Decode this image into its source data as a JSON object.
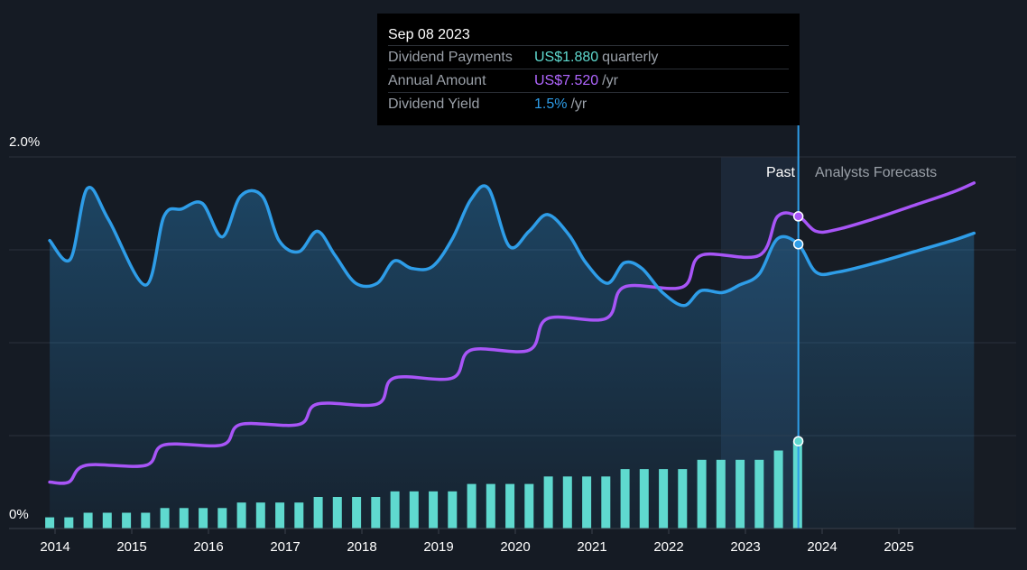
{
  "colors": {
    "background": "#151b24",
    "payments": "#5fd9cf",
    "annual": "#a855f7",
    "yield": "#2e9de8",
    "text": "#ffffff",
    "muted": "#9aa0a8"
  },
  "tooltip": {
    "date": "Sep 08 2023",
    "rows": [
      {
        "label": "Dividend Payments",
        "value": "US$1.880",
        "unit": "quarterly"
      },
      {
        "label": "Annual Amount",
        "value": "US$7.520",
        "unit": "/yr"
      },
      {
        "label": "Dividend Yield",
        "value": "1.5%",
        "unit": "/yr"
      }
    ]
  },
  "labels": {
    "past": "Past",
    "forecast": "Analysts Forecasts"
  },
  "chart_data": {
    "type": "line",
    "title": "",
    "xlabel": "",
    "ylabel": "",
    "x_ticks": [
      "2014",
      "2015",
      "2016",
      "2017",
      "2018",
      "2019",
      "2020",
      "2021",
      "2022",
      "2023",
      "2024",
      "2025"
    ],
    "y_ticks": [
      "0%",
      "2.0%"
    ],
    "ylim": [
      0,
      2.0
    ],
    "grid": true,
    "past_end": 2023.69,
    "series": [
      {
        "kind": "line",
        "values": [
          [
            2013.93,
            1.55
          ],
          [
            2014.2,
            1.45
          ],
          [
            2014.42,
            1.83
          ],
          [
            2014.7,
            1.66
          ],
          [
            2015.18,
            1.31
          ],
          [
            2015.42,
            1.68
          ],
          [
            2015.65,
            1.72
          ],
          [
            2015.92,
            1.75
          ],
          [
            2016.18,
            1.57
          ],
          [
            2016.42,
            1.79
          ],
          [
            2016.7,
            1.79
          ],
          [
            2016.92,
            1.55
          ],
          [
            2017.18,
            1.49
          ],
          [
            2017.42,
            1.6
          ],
          [
            2017.65,
            1.47
          ],
          [
            2017.92,
            1.32
          ],
          [
            2018.2,
            1.32
          ],
          [
            2018.42,
            1.44
          ],
          [
            2018.65,
            1.4
          ],
          [
            2018.92,
            1.41
          ],
          [
            2019.18,
            1.56
          ],
          [
            2019.42,
            1.77
          ],
          [
            2019.65,
            1.83
          ],
          [
            2019.92,
            1.52
          ],
          [
            2020.18,
            1.6
          ],
          [
            2020.42,
            1.69
          ],
          [
            2020.7,
            1.58
          ],
          [
            2020.92,
            1.43
          ],
          [
            2021.2,
            1.32
          ],
          [
            2021.42,
            1.43
          ],
          [
            2021.65,
            1.4
          ],
          [
            2021.92,
            1.27
          ],
          [
            2022.2,
            1.2
          ],
          [
            2022.42,
            1.28
          ],
          [
            2022.7,
            1.27
          ],
          [
            2022.92,
            1.31
          ],
          [
            2023.18,
            1.37
          ],
          [
            2023.42,
            1.56
          ],
          [
            2023.69,
            1.53
          ],
          [
            2023.92,
            1.38
          ],
          [
            2024.2,
            1.38
          ],
          [
            2024.7,
            1.43
          ],
          [
            2025.2,
            1.49
          ],
          [
            2025.7,
            1.55
          ],
          [
            2025.98,
            1.59
          ]
        ]
      },
      {
        "kind": "step",
        "values": [
          [
            2013.93,
            0.25
          ],
          [
            2014.18,
            0.25
          ],
          [
            2014.4,
            0.34
          ],
          [
            2015.18,
            0.34
          ],
          [
            2015.42,
            0.45
          ],
          [
            2016.18,
            0.45
          ],
          [
            2016.42,
            0.56
          ],
          [
            2017.18,
            0.56
          ],
          [
            2017.42,
            0.67
          ],
          [
            2018.2,
            0.67
          ],
          [
            2018.42,
            0.81
          ],
          [
            2019.18,
            0.81
          ],
          [
            2019.42,
            0.96
          ],
          [
            2020.18,
            0.96
          ],
          [
            2020.42,
            1.13
          ],
          [
            2021.18,
            1.13
          ],
          [
            2021.42,
            1.3
          ],
          [
            2022.18,
            1.3
          ],
          [
            2022.42,
            1.47
          ],
          [
            2023.18,
            1.47
          ],
          [
            2023.42,
            1.68
          ],
          [
            2023.69,
            1.68
          ],
          [
            2023.92,
            1.6
          ],
          [
            2024.2,
            1.61
          ],
          [
            2024.7,
            1.67
          ],
          [
            2025.2,
            1.74
          ],
          [
            2025.7,
            1.81
          ],
          [
            2025.98,
            1.86
          ]
        ]
      },
      {
        "kind": "bars",
        "x": [
          2013.93,
          2014.18,
          2014.43,
          2014.68,
          2014.93,
          2015.18,
          2015.43,
          2015.68,
          2015.93,
          2016.18,
          2016.43,
          2016.68,
          2016.93,
          2017.18,
          2017.43,
          2017.68,
          2017.93,
          2018.18,
          2018.43,
          2018.68,
          2018.93,
          2019.18,
          2019.43,
          2019.68,
          2019.93,
          2020.18,
          2020.43,
          2020.68,
          2020.93,
          2021.18,
          2021.43,
          2021.68,
          2021.93,
          2022.18,
          2022.43,
          2022.68,
          2022.93,
          2023.18,
          2023.43,
          2023.68
        ],
        "values": [
          0.06,
          0.06,
          0.085,
          0.085,
          0.085,
          0.085,
          0.11,
          0.11,
          0.11,
          0.11,
          0.14,
          0.14,
          0.14,
          0.14,
          0.17,
          0.17,
          0.17,
          0.17,
          0.2,
          0.2,
          0.2,
          0.2,
          0.24,
          0.24,
          0.24,
          0.24,
          0.28,
          0.28,
          0.28,
          0.28,
          0.32,
          0.32,
          0.32,
          0.32,
          0.37,
          0.37,
          0.37,
          0.37,
          0.42,
          0.47
        ]
      }
    ]
  }
}
